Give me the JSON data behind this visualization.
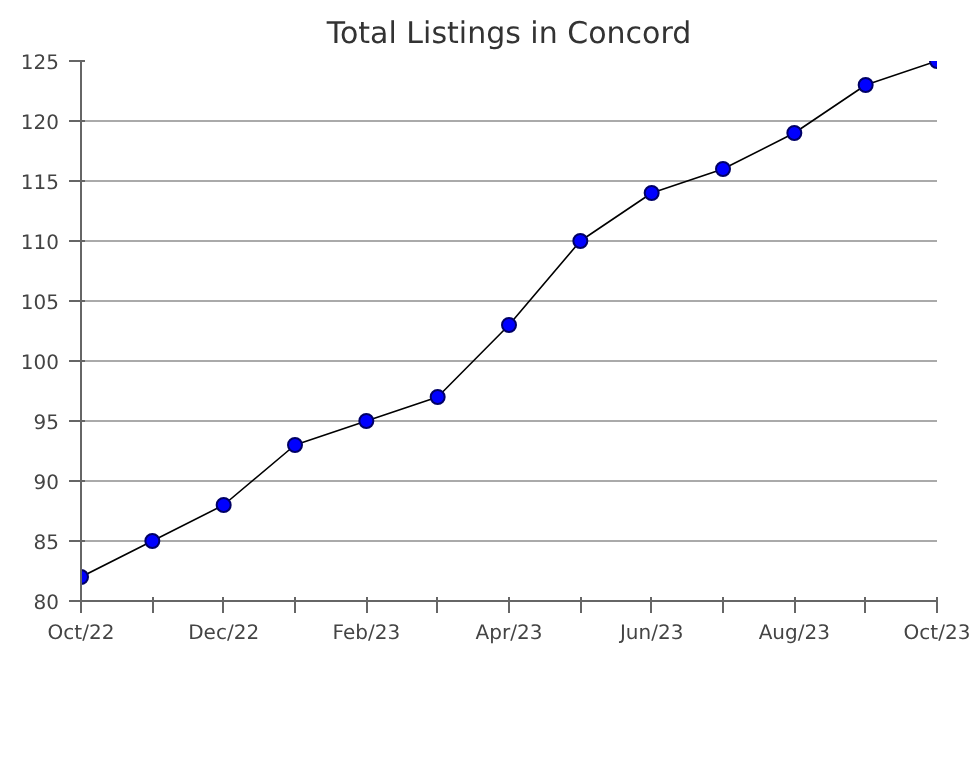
{
  "chart_data": {
    "type": "line",
    "title": "Total Listings in Concord",
    "categories": [
      "Oct/22",
      null,
      "Dec/22",
      null,
      "Feb/23",
      null,
      "Apr/23",
      null,
      "Jun/23",
      null,
      "Aug/23",
      null,
      "Oct/23"
    ],
    "series": [
      {
        "color": "#0000ff",
        "values": [
          82,
          85,
          88,
          93,
          95,
          97,
          103,
          110,
          114,
          116,
          119,
          123,
          125
        ]
      }
    ],
    "ylim": [
      80,
      125
    ],
    "yticks": [
      80,
      85,
      90,
      95,
      100,
      105,
      110,
      115,
      120,
      125
    ],
    "grid": "y",
    "marker": "circle",
    "line_style": "solid"
  }
}
